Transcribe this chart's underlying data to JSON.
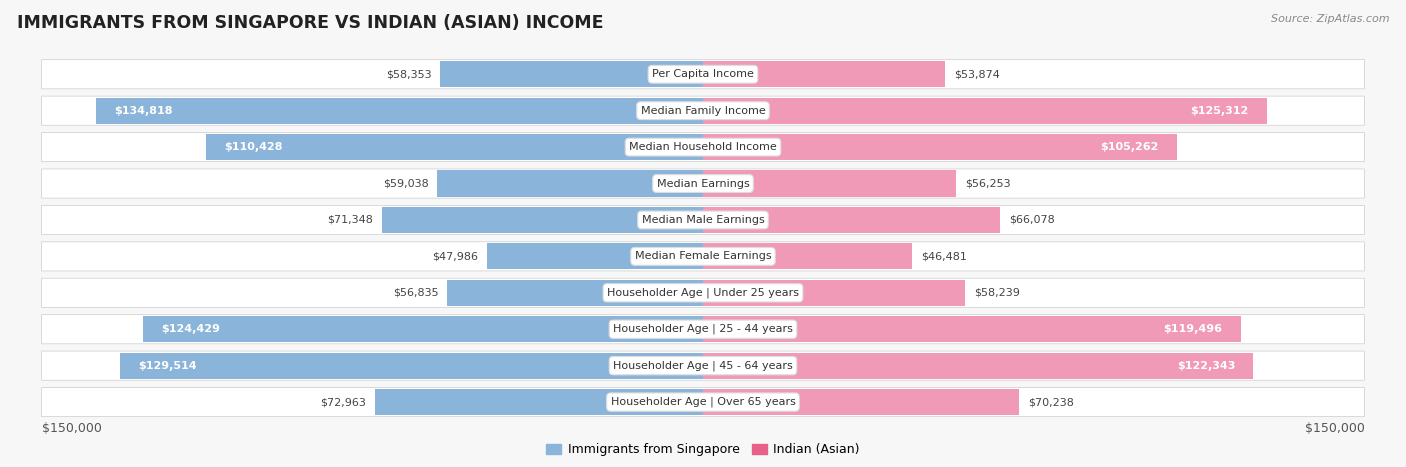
{
  "title": "IMMIGRANTS FROM SINGAPORE VS INDIAN (ASIAN) INCOME",
  "source": "Source: ZipAtlas.com",
  "categories": [
    "Per Capita Income",
    "Median Family Income",
    "Median Household Income",
    "Median Earnings",
    "Median Male Earnings",
    "Median Female Earnings",
    "Householder Age | Under 25 years",
    "Householder Age | 25 - 44 years",
    "Householder Age | 45 - 64 years",
    "Householder Age | Over 65 years"
  ],
  "singapore_values": [
    58353,
    134818,
    110428,
    59038,
    71348,
    47986,
    56835,
    124429,
    129514,
    72963
  ],
  "indian_values": [
    53874,
    125312,
    105262,
    56253,
    66078,
    46481,
    58239,
    119496,
    122343,
    70238
  ],
  "singapore_color": "#8ab4d9",
  "indian_color": "#f09ab8",
  "indian_color_strong": "#e8608a",
  "background_color": "#f7f7f7",
  "row_bg": "#ffffff",
  "max_value": 150000,
  "legend_singapore": "Immigrants from Singapore",
  "legend_indian": "Indian (Asian)",
  "xlabel_left": "$150,000",
  "xlabel_right": "$150,000",
  "sg_threshold": 80000,
  "ind_threshold": 80000
}
